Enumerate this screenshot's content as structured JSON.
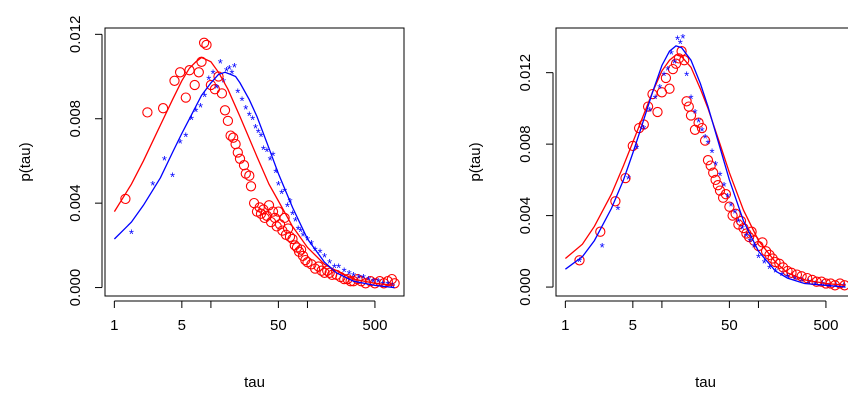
{
  "chart_data": [
    {
      "type": "scatter",
      "xlabel": "tau",
      "ylabel": "p(tau)",
      "x_scale": "log10",
      "xlim": [
        0.8,
        1000
      ],
      "ylim": [
        -0.0004,
        0.0123
      ],
      "x_ticks": [
        1,
        5,
        50,
        500
      ],
      "x_tick_labels": [
        "1",
        "5",
        "50",
        "500"
      ],
      "x_minor_ticks": [
        10,
        100
      ],
      "y_ticks": [
        0.0,
        0.004,
        0.008,
        0.012
      ],
      "y_tick_labels": [
        "0.000",
        "0.004",
        "0.008",
        "0.012"
      ],
      "grid": false,
      "series": [
        {
          "kind": "points",
          "marker": "circle",
          "color": "#ff0000",
          "x": [
            1.3,
            2.2,
            3.2,
            4.2,
            4.8,
            5.5,
            6,
            6.8,
            7.5,
            8,
            8.5,
            9,
            10,
            11,
            12,
            13,
            14,
            15,
            16,
            17,
            18,
            19,
            20,
            22,
            23,
            25,
            26,
            28,
            30,
            32,
            33,
            35,
            36,
            38,
            40,
            42,
            44,
            46,
            48,
            50,
            52,
            55,
            58,
            60,
            63,
            66,
            70,
            74,
            78,
            82,
            86,
            90,
            95,
            100,
            110,
            120,
            130,
            140,
            150,
            160,
            170,
            180,
            200,
            220,
            240,
            260,
            280,
            300,
            330,
            360,
            400,
            450,
            500,
            560,
            620,
            680,
            750,
            800
          ],
          "y": [
            0.0042,
            0.0083,
            0.0085,
            0.0098,
            0.0102,
            0.009,
            0.0103,
            0.0096,
            0.0102,
            0.0107,
            0.0116,
            0.0115,
            0.0096,
            0.0094,
            0.01,
            0.0092,
            0.0084,
            0.0079,
            0.0072,
            0.0071,
            0.0068,
            0.0064,
            0.0061,
            0.0058,
            0.0054,
            0.0053,
            0.0048,
            0.004,
            0.0036,
            0.0038,
            0.0035,
            0.0037,
            0.0033,
            0.0034,
            0.0039,
            0.0031,
            0.0036,
            0.0033,
            0.0029,
            0.0036,
            0.003,
            0.0027,
            0.0033,
            0.0025,
            0.0028,
            0.0024,
            0.0023,
            0.002,
            0.0019,
            0.0017,
            0.0018,
            0.0015,
            0.0013,
            0.0012,
            0.0011,
            0.0009,
            0.001,
            0.0008,
            0.0007,
            0.0008,
            0.0007,
            0.0006,
            0.0006,
            0.0005,
            0.0004,
            0.0004,
            0.0003,
            0.0003,
            0.0004,
            0.0003,
            0.0002,
            0.0003,
            0.0002,
            0.0003,
            0.0002,
            0.0003,
            0.0004,
            0.0002
          ]
        },
        {
          "kind": "points",
          "marker": "asterisk",
          "color": "#0000ff",
          "x": [
            1.5,
            2.5,
            3.3,
            4,
            4.8,
            5.5,
            6.3,
            7,
            7.8,
            8.6,
            9.5,
            10.5,
            11.5,
            12.5,
            13.5,
            14.5,
            15.5,
            16.5,
            17.5,
            19,
            21,
            23,
            25,
            27,
            29,
            31,
            33,
            35,
            38,
            41,
            44,
            47,
            50,
            54,
            58,
            62,
            66,
            70,
            75,
            80,
            85,
            90,
            100,
            110,
            120,
            135,
            150,
            170,
            190,
            210,
            240,
            270,
            300,
            340,
            380,
            430,
            480,
            540,
            600,
            680,
            760
          ],
          "y": [
            0.0026,
            0.0049,
            0.0061,
            0.0053,
            0.0069,
            0.0072,
            0.008,
            0.0084,
            0.0086,
            0.0091,
            0.0099,
            0.0102,
            0.0095,
            0.0107,
            0.0098,
            0.0103,
            0.0104,
            0.0102,
            0.0105,
            0.0093,
            0.0089,
            0.0085,
            0.0082,
            0.008,
            0.0076,
            0.0074,
            0.0072,
            0.0066,
            0.0065,
            0.0061,
            0.0063,
            0.0055,
            0.0049,
            0.0045,
            0.0046,
            0.0039,
            0.0041,
            0.0035,
            0.0032,
            0.0028,
            0.0027,
            0.0025,
            0.0023,
            0.0021,
            0.0018,
            0.0017,
            0.0015,
            0.0012,
            0.001,
            0.001,
            0.0008,
            0.0007,
            0.0006,
            0.0005,
            0.0005,
            0.0004,
            0.0003,
            0.0003,
            0.0002,
            0.0002,
            0.0001
          ]
        },
        {
          "kind": "line",
          "color": "#ff0000",
          "x": [
            1,
            1.5,
            2,
            3,
            4,
            5,
            6,
            7,
            8,
            9,
            10,
            12,
            15,
            20,
            30,
            40,
            50,
            70,
            100,
            150,
            200,
            300,
            500,
            800
          ],
          "y": [
            0.0036,
            0.0049,
            0.006,
            0.0077,
            0.0089,
            0.0098,
            0.0104,
            0.0107,
            0.0109,
            0.0108,
            0.0107,
            0.0102,
            0.0094,
            0.0081,
            0.0062,
            0.0049,
            0.0041,
            0.0029,
            0.0019,
            0.0011,
            0.0008,
            0.0004,
            0.0002,
            0.0001
          ]
        },
        {
          "kind": "line",
          "color": "#0000ff",
          "x": [
            1,
            1.5,
            2,
            3,
            4,
            5,
            6,
            8,
            10,
            12,
            14,
            16,
            18,
            20,
            25,
            30,
            40,
            50,
            70,
            100,
            150,
            200,
            300,
            500,
            800
          ],
          "y": [
            0.0023,
            0.0031,
            0.0039,
            0.0052,
            0.0064,
            0.0073,
            0.008,
            0.0091,
            0.0097,
            0.0101,
            0.0102,
            0.0101,
            0.01,
            0.0097,
            0.0089,
            0.0081,
            0.0066,
            0.0054,
            0.0038,
            0.0023,
            0.0012,
            0.0007,
            0.0003,
            0.0001,
            0.0
          ]
        }
      ]
    },
    {
      "type": "scatter",
      "xlabel": "tau",
      "ylabel": "p(tau)",
      "x_scale": "log10",
      "xlim": [
        0.8,
        1000
      ],
      "ylim": [
        -0.0005,
        0.0145
      ],
      "x_ticks": [
        1,
        5,
        50,
        500
      ],
      "x_tick_labels": [
        "1",
        "5",
        "50",
        "500"
      ],
      "x_minor_ticks": [
        10,
        100
      ],
      "y_ticks": [
        0.0,
        0.004,
        0.008,
        0.012
      ],
      "y_tick_labels": [
        "0.000",
        "0.004",
        "0.008",
        "0.012"
      ],
      "grid": false,
      "series": [
        {
          "kind": "points",
          "marker": "circle",
          "color": "#ff0000",
          "x": [
            1.4,
            2.3,
            3.3,
            4.2,
            5,
            5.8,
            6.5,
            7.2,
            8,
            9,
            10,
            11,
            12,
            13,
            14,
            15,
            16,
            17,
            18,
            19,
            20,
            22,
            24,
            26,
            28,
            30,
            32,
            34,
            36,
            38,
            40,
            43,
            46,
            50,
            54,
            58,
            62,
            66,
            70,
            75,
            80,
            85,
            90,
            100,
            110,
            120,
            130,
            140,
            150,
            165,
            180,
            200,
            220,
            250,
            280,
            320,
            360,
            400,
            450,
            500,
            560,
            620,
            700,
            780
          ],
          "y": [
            0.0015,
            0.0031,
            0.0048,
            0.0061,
            0.0079,
            0.0089,
            0.0091,
            0.0101,
            0.0108,
            0.0098,
            0.0109,
            0.0117,
            0.0111,
            0.0122,
            0.0125,
            0.0128,
            0.0132,
            0.0127,
            0.0104,
            0.0101,
            0.0096,
            0.0088,
            0.0092,
            0.0089,
            0.0082,
            0.0071,
            0.0068,
            0.0064,
            0.006,
            0.0057,
            0.0054,
            0.005,
            0.0052,
            0.0045,
            0.004,
            0.0041,
            0.0035,
            0.0037,
            0.0033,
            0.003,
            0.0028,
            0.0031,
            0.0026,
            0.0023,
            0.0025,
            0.002,
            0.0018,
            0.0016,
            0.0014,
            0.0013,
            0.0011,
            0.0009,
            0.0008,
            0.0007,
            0.0006,
            0.0005,
            0.0004,
            0.0003,
            0.0003,
            0.0002,
            0.0002,
            0.0001,
            0.0002,
            0.0001
          ]
        },
        {
          "kind": "points",
          "marker": "asterisk",
          "color": "#0000ff",
          "x": [
            1.4,
            2.4,
            3.5,
            4.5,
            5.5,
            6.5,
            7.5,
            8.5,
            9.5,
            10.5,
            11.5,
            12.5,
            13.5,
            14.5,
            15.5,
            16.5,
            18,
            20,
            22,
            24,
            26,
            28,
            30,
            33,
            36,
            40,
            44,
            48,
            52,
            57,
            62,
            68,
            75,
            82,
            90,
            100,
            115,
            130,
            150,
            175,
            200,
            240,
            280,
            330,
            390,
            460,
            540,
            640,
            760
          ],
          "y": [
            0.0015,
            0.0023,
            0.0044,
            0.0061,
            0.0078,
            0.0089,
            0.0099,
            0.0106,
            0.0112,
            0.0119,
            0.0122,
            0.0131,
            0.0126,
            0.0139,
            0.0137,
            0.014,
            0.0119,
            0.0106,
            0.0098,
            0.0093,
            0.0088,
            0.0084,
            0.0081,
            0.0076,
            0.0069,
            0.0063,
            0.0057,
            0.0051,
            0.0046,
            0.0042,
            0.0037,
            0.0033,
            0.0029,
            0.0026,
            0.0023,
            0.0017,
            0.0014,
            0.0011,
            0.0009,
            0.0007,
            0.0006,
            0.0005,
            0.0004,
            0.0003,
            0.0002,
            0.0002,
            0.0001,
            0.0001,
            0.0001
          ]
        },
        {
          "kind": "line",
          "color": "#ff0000",
          "x": [
            1,
            1.5,
            2,
            3,
            4,
            5,
            6,
            8,
            10,
            12,
            14,
            16,
            20,
            25,
            30,
            40,
            50,
            70,
            100,
            150,
            200,
            300,
            500,
            800
          ],
          "y": [
            0.0016,
            0.0024,
            0.0034,
            0.0052,
            0.0068,
            0.0081,
            0.0092,
            0.0109,
            0.0121,
            0.0127,
            0.013,
            0.0129,
            0.0123,
            0.0111,
            0.01,
            0.008,
            0.0064,
            0.0043,
            0.0026,
            0.0014,
            0.0008,
            0.0004,
            0.0002,
            0.0001
          ]
        },
        {
          "kind": "line",
          "color": "#0000ff",
          "x": [
            1,
            1.5,
            2,
            3,
            4,
            5,
            6,
            8,
            10,
            12,
            14,
            16,
            20,
            25,
            30,
            40,
            50,
            70,
            100,
            150,
            200,
            300,
            500,
            800
          ],
          "y": [
            0.001,
            0.0017,
            0.0026,
            0.0044,
            0.006,
            0.0075,
            0.0088,
            0.0109,
            0.0124,
            0.0132,
            0.0135,
            0.0134,
            0.0127,
            0.0114,
            0.0101,
            0.0078,
            0.006,
            0.0037,
            0.002,
            0.0009,
            0.0005,
            0.0002,
            0.0001,
            0.0
          ]
        }
      ]
    }
  ]
}
